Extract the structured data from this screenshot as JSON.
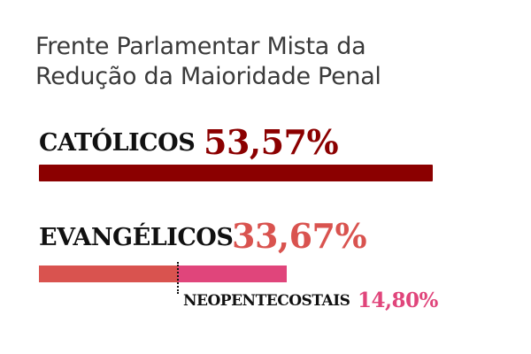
{
  "header": {
    "title_line1": "Frente Parlamentar Mista da",
    "title_line2": "Redução da Maioridade Penal"
  },
  "colors": {
    "catolicos": "#8b0000",
    "evangelicos": "#d9534f",
    "neopentecostais": "#e0457b",
    "label": "#111111"
  },
  "chart_data": {
    "type": "bar",
    "title": "Frente Parlamentar Mista da Redução da Maioridade Penal",
    "series": [
      {
        "name": "CATÓLICOS",
        "value": 53.57,
        "value_label": "53,57%"
      },
      {
        "name": "EVANGÉLICOS",
        "value": 33.67,
        "value_label": "33,67%",
        "segments": [
          {
            "name": "",
            "value": 18.87
          },
          {
            "name": "NEOPENTECOSTAIS",
            "value": 14.8,
            "value_label": "14,80%"
          }
        ]
      }
    ]
  }
}
